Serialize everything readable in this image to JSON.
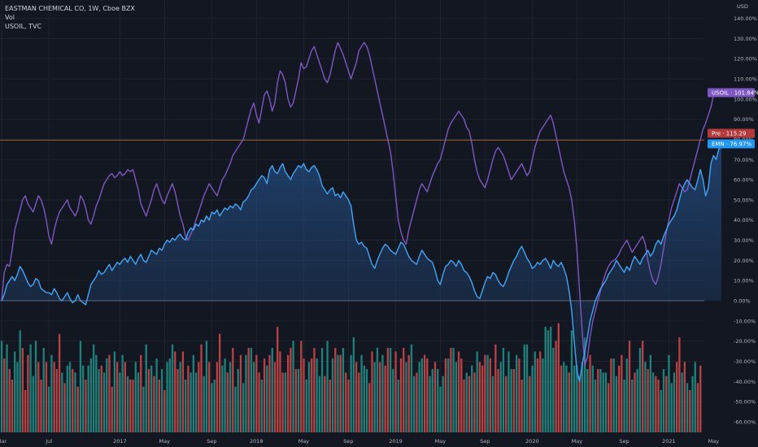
{
  "header": {
    "title": "EASTMAN CHEMICAL CO, 1W, Cboe BZX",
    "volume_label": "Vol",
    "compare_label": "USOIL, TVC",
    "currency": "USD"
  },
  "price_tags": [
    {
      "text": "USOIL · 101.84%",
      "value": 101.84,
      "color": "#7e57c2"
    },
    {
      "text": "Pre · 115.29",
      "value": 79.6,
      "color": "#b2393c"
    },
    {
      "text": "EMN · 76.97%",
      "value": 76.97,
      "color": "#2196f3"
    }
  ],
  "colors": {
    "background": "#131722",
    "emn_line": "#42a5f5",
    "emn_fill": "#1f4e79",
    "usoil_line": "#7e57c2",
    "vol_up": "#26a69a",
    "vol_down": "#ef5350",
    "baseline": "#5d6a82",
    "pre_line": "#c77b30"
  },
  "chart_data": {
    "type": "line",
    "xlabel": "",
    "ylabel": "",
    "ylim": [
      -62,
      142
    ],
    "x_range": [
      0,
      266
    ],
    "grid": true,
    "y_ticks": [
      -60,
      -50,
      -40,
      -30,
      -20,
      -10,
      0,
      10,
      20,
      30,
      40,
      50,
      60,
      70,
      80,
      90,
      100,
      110,
      120,
      130,
      140
    ],
    "x_ticks": [
      {
        "label": "Mar",
        "x": 0
      },
      {
        "label": "Jul",
        "x": 18
      },
      {
        "label": "2017",
        "x": 45
      },
      {
        "label": "May",
        "x": 62
      },
      {
        "label": "Sep",
        "x": 80
      },
      {
        "label": "2018",
        "x": 97
      },
      {
        "label": "May",
        "x": 115
      },
      {
        "label": "Sep",
        "x": 132
      },
      {
        "label": "2019",
        "x": 150
      },
      {
        "label": "May",
        "x": 167
      },
      {
        "label": "Sep",
        "x": 184
      },
      {
        "label": "2020",
        "x": 202
      },
      {
        "label": "May",
        "x": 219
      },
      {
        "label": "Sep",
        "x": 237
      },
      {
        "label": "2021",
        "x": 254
      },
      {
        "label": "May",
        "x": 271
      }
    ],
    "series": [
      {
        "name": "EMN",
        "x_start": 0,
        "values": [
          0,
          3,
          8,
          10,
          12,
          10,
          13,
          17,
          15,
          12,
          9,
          7,
          8,
          11,
          10,
          6,
          5,
          4,
          4,
          3,
          6,
          4,
          1,
          0,
          2,
          4,
          1,
          -1,
          0,
          3,
          0,
          -1,
          -2,
          3,
          8,
          10,
          12,
          15,
          13,
          14,
          16,
          18,
          15,
          17,
          19,
          18,
          20,
          21,
          19,
          22,
          20,
          18,
          21,
          23,
          20,
          19,
          22,
          25,
          24,
          23,
          26,
          25,
          28,
          30,
          29,
          31,
          30,
          32,
          33,
          31,
          30,
          34,
          36,
          35,
          38,
          37,
          40,
          39,
          42,
          40,
          44,
          43,
          45,
          42,
          44,
          46,
          45,
          47,
          46,
          48,
          47,
          45,
          49,
          50,
          52,
          55,
          56,
          58,
          60,
          62,
          61,
          58,
          65,
          67,
          64,
          63,
          66,
          68,
          64,
          62,
          60,
          63,
          65,
          67,
          66,
          68,
          65,
          64,
          66,
          67,
          65,
          62,
          57,
          55,
          53,
          55,
          56,
          52,
          53,
          51,
          54,
          52,
          50,
          47,
          38,
          30,
          28,
          29,
          27,
          26,
          22,
          18,
          16,
          20,
          23,
          26,
          28,
          27,
          25,
          24,
          23,
          26,
          29,
          28,
          25,
          22,
          20,
          19,
          18,
          22,
          25,
          23,
          21,
          20,
          19,
          15,
          10,
          8,
          13,
          17,
          18,
          20,
          19,
          17,
          20,
          18,
          15,
          14,
          12,
          9,
          5,
          2,
          1,
          5,
          9,
          12,
          11,
          14,
          13,
          10,
          8,
          7,
          10,
          14,
          17,
          20,
          22,
          25,
          27,
          24,
          21,
          19,
          16,
          17,
          19,
          18,
          20,
          21,
          19,
          16,
          20,
          18,
          17,
          19,
          16,
          12,
          5,
          -5,
          -20,
          -35,
          -40,
          -32,
          -25,
          -18,
          -10,
          -5,
          0,
          3,
          6,
          8,
          10,
          13,
          15,
          17,
          20,
          18,
          16,
          14,
          17,
          15,
          19,
          22,
          20,
          18,
          21,
          23,
          25,
          22,
          24,
          28,
          30,
          28,
          32,
          35,
          38,
          40,
          42,
          45,
          50,
          55,
          58,
          60,
          58,
          56,
          55,
          60,
          65,
          60,
          52,
          56,
          68,
          72,
          70,
          75,
          77
        ]
      },
      {
        "name": "USOIL",
        "x_start": 0,
        "values": [
          0,
          14,
          18,
          17,
          25,
          35,
          40,
          45,
          50,
          52,
          48,
          46,
          44,
          48,
          52,
          50,
          46,
          40,
          32,
          28,
          35,
          40,
          44,
          46,
          48,
          50,
          46,
          44,
          42,
          45,
          52,
          50,
          46,
          40,
          38,
          42,
          47,
          50,
          54,
          58,
          60,
          62,
          63,
          61,
          62,
          64,
          62,
          63,
          65,
          64,
          65,
          60,
          55,
          48,
          45,
          42,
          46,
          50,
          55,
          58,
          54,
          50,
          48,
          52,
          55,
          58,
          54,
          48,
          42,
          38,
          32,
          30,
          33,
          36,
          40,
          44,
          48,
          52,
          55,
          58,
          56,
          54,
          52,
          56,
          60,
          62,
          65,
          68,
          72,
          74,
          76,
          78,
          80,
          85,
          90,
          95,
          98,
          92,
          88,
          95,
          102,
          104,
          100,
          94,
          98,
          108,
          114,
          112,
          108,
          100,
          96,
          98,
          104,
          110,
          118,
          115,
          116,
          120,
          124,
          126,
          122,
          118,
          114,
          110,
          108,
          112,
          118,
          124,
          128,
          125,
          122,
          118,
          114,
          110,
          114,
          118,
          124,
          126,
          128,
          126,
          122,
          116,
          110,
          104,
          98,
          92,
          86,
          80,
          74,
          64,
          52,
          40,
          34,
          30,
          28,
          35,
          40,
          45,
          50,
          55,
          58,
          56,
          54,
          58,
          62,
          65,
          68,
          70,
          75,
          80,
          85,
          88,
          90,
          92,
          94,
          92,
          90,
          86,
          84,
          78,
          70,
          64,
          60,
          58,
          56,
          60,
          65,
          70,
          74,
          76,
          74,
          72,
          68,
          64,
          60,
          62,
          64,
          66,
          68,
          65,
          62,
          64,
          70,
          76,
          80,
          84,
          86,
          88,
          90,
          92,
          88,
          82,
          76,
          70,
          64,
          60,
          56,
          50,
          40,
          25,
          5,
          -15,
          -32,
          -28,
          -18,
          -10,
          -5,
          0,
          5,
          10,
          14,
          17,
          19,
          20,
          21,
          23,
          26,
          28,
          30,
          27,
          24,
          26,
          28,
          30,
          32,
          28,
          20,
          14,
          10,
          8,
          12,
          18,
          26,
          34,
          40,
          46,
          50,
          54,
          58,
          56,
          54,
          55,
          60,
          65,
          70,
          75,
          80,
          85,
          88,
          92,
          96,
          101.84
        ]
      }
    ],
    "volume": {
      "name": "Vol",
      "x_start": 0,
      "values": [
        26,
        21,
        25,
        18,
        15,
        23,
        20,
        29,
        24,
        12,
        22,
        25,
        16,
        26,
        20,
        15,
        24,
        20,
        13,
        22,
        20,
        18,
        28,
        17,
        14,
        19,
        20,
        18,
        17,
        13,
        26,
        19,
        15,
        19,
        21,
        25,
        22,
        18,
        19,
        17,
        21,
        22,
        13,
        23,
        20,
        17,
        22,
        20,
        16,
        15,
        15,
        20,
        17,
        22,
        13,
        25,
        18,
        19,
        16,
        21,
        15,
        18,
        12,
        20,
        21,
        25,
        23,
        18,
        20,
        23,
        15,
        19,
        17,
        22,
        17,
        20,
        25,
        16,
        26,
        20,
        14,
        15,
        20,
        28,
        19,
        21,
        17,
        20,
        24,
        13,
        18,
        22,
        14,
        22,
        24,
        24,
        20,
        22,
        17,
        15,
        21,
        19,
        22,
        24,
        20,
        30,
        23,
        17,
        17,
        22,
        24,
        26,
        18,
        18,
        26,
        21,
        15,
        20,
        21,
        24,
        21,
        16,
        24,
        16,
        26,
        15,
        21,
        24,
        22,
        22,
        24,
        17,
        15,
        22,
        27,
        20,
        17,
        22,
        19,
        18,
        14,
        23,
        20,
        24,
        20,
        22,
        19,
        24,
        24,
        18,
        23,
        15,
        21,
        24,
        20,
        22,
        25,
        16,
        17,
        20,
        21,
        22,
        21,
        16,
        18,
        20,
        18,
        13,
        16,
        21,
        21,
        24,
        24,
        20,
        23,
        21,
        15,
        17,
        16,
        19,
        17,
        23,
        20,
        19,
        22,
        22,
        21,
        16,
        25,
        18,
        20,
        24,
        16,
        23,
        18,
        18,
        22,
        21,
        15,
        25,
        25,
        16,
        19,
        23,
        21,
        23,
        21,
        30,
        29,
        30,
        24,
        26,
        31,
        19,
        20,
        19,
        17,
        29,
        19,
        19,
        16,
        20,
        27,
        18,
        22,
        19,
        15,
        18,
        18,
        17,
        17,
        14,
        21,
        21,
        16,
        19,
        22,
        15,
        21,
        26,
        15,
        17,
        18,
        24,
        26,
        20,
        18,
        22,
        17,
        16,
        15,
        12,
        18,
        16,
        22,
        14,
        17,
        20,
        27,
        17,
        20,
        14,
        12,
        16,
        20,
        14,
        19,
        24,
        22,
        19,
        25,
        14,
        21,
        19,
        25,
        20,
        16
      ],
      "up": [
        1,
        0,
        1,
        0,
        0,
        1,
        1,
        1,
        0,
        0,
        0,
        1,
        1,
        1,
        0,
        0,
        1,
        0,
        1,
        1,
        0,
        0,
        0,
        1,
        0,
        1,
        1,
        0,
        1,
        0,
        1,
        1,
        0,
        1,
        1,
        1,
        1,
        1,
        0,
        1,
        1,
        0,
        0,
        1,
        0,
        1,
        1,
        0,
        1,
        0,
        0,
        1,
        1,
        0,
        1,
        1,
        0,
        1,
        0,
        1,
        0,
        1,
        0,
        1,
        1,
        1,
        0,
        0,
        1,
        0,
        1,
        0,
        1,
        1,
        1,
        0,
        0,
        1,
        1,
        0,
        1,
        1,
        0,
        0,
        1,
        1,
        0,
        1,
        0,
        1,
        1,
        0,
        1,
        1,
        0,
        1,
        1,
        0,
        0,
        1,
        0,
        1,
        0,
        1,
        0,
        0,
        0,
        0,
        1,
        0,
        0,
        1,
        0,
        1,
        0,
        0,
        1,
        1,
        0,
        0,
        1,
        1,
        1,
        0,
        1,
        0,
        1,
        0,
        1,
        0,
        1,
        0,
        0,
        1,
        1,
        0,
        0,
        1,
        1,
        1,
        0,
        0,
        1,
        1,
        0,
        1,
        0,
        0,
        1,
        1,
        0,
        1,
        0,
        0,
        1,
        0,
        1,
        1,
        0,
        1,
        1,
        0,
        0,
        1,
        1,
        0,
        1,
        1,
        1,
        0,
        1,
        0,
        1,
        1,
        0,
        0,
        0,
        1,
        0,
        1,
        0,
        1,
        0,
        0,
        0,
        1,
        0,
        1,
        0,
        0,
        1,
        1,
        0,
        1,
        1,
        0,
        1,
        0,
        0,
        1,
        1,
        0,
        1,
        1,
        0,
        0,
        1,
        1,
        1,
        1,
        1,
        0,
        0,
        0,
        1,
        1,
        0,
        1,
        1,
        1,
        0,
        1,
        1,
        1,
        0,
        1,
        1,
        0,
        1,
        1,
        1,
        0,
        0,
        1,
        1,
        0,
        0,
        1,
        1,
        0,
        1,
        0,
        1,
        1,
        0,
        1,
        0,
        1,
        1,
        0,
        0,
        1,
        1,
        0,
        1,
        1,
        1,
        0,
        0,
        1,
        0,
        1,
        0,
        1,
        1
      ]
    }
  }
}
